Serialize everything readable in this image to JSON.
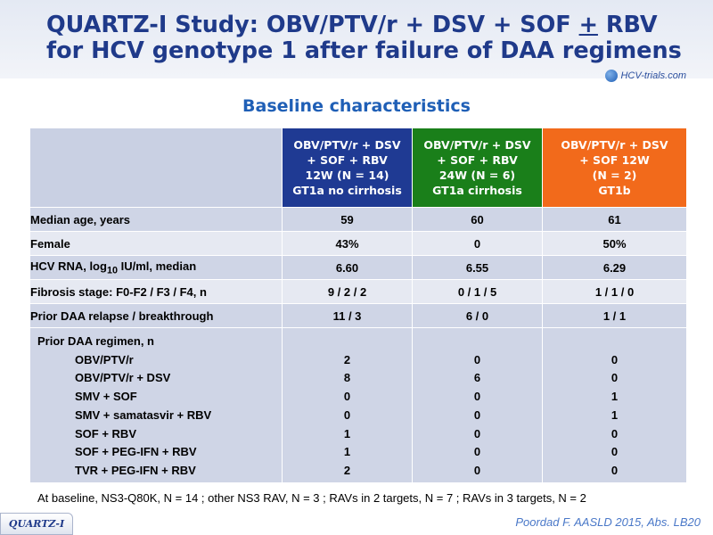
{
  "title": {
    "line1_a": "QUARTZ-I Study: OBV/PTV/r + DSV + SOF ",
    "line1_plusminus": "+",
    "line1_b": " RBV",
    "line2": "for HCV genotype 1 after failure of DAA regimens"
  },
  "logo": {
    "text": "HCV-trials.com"
  },
  "subtitle": "Baseline characteristics",
  "columns": [
    {
      "lines": [
        "OBV/PTV/r + DSV",
        "+ SOF + RBV",
        "12W (N = 14)",
        "GT1a no cirrhosis"
      ],
      "color": "#1f3a93"
    },
    {
      "lines": [
        "OBV/PTV/r + DSV",
        "+ SOF + RBV",
        "24W (N = 6)",
        "GT1a cirrhosis"
      ],
      "color": "#1a7f1a"
    },
    {
      "lines": [
        "OBV/PTV/r + DSV",
        "+ SOF 12W",
        "(N = 2)",
        "GT1b"
      ],
      "color": "#f26a1b"
    }
  ],
  "rows": [
    {
      "label": "Median age, years",
      "values": [
        "59",
        "60",
        "61"
      ]
    },
    {
      "label": "Female",
      "values": [
        "43%",
        "0",
        "50%"
      ]
    },
    {
      "label_pre": "HCV RNA, log",
      "label_sub": "10",
      "label_post": " IU/ml, median",
      "values": [
        "6.60",
        "6.55",
        "6.29"
      ]
    },
    {
      "label": "Fibrosis stage: F0-F2 / F3 / F4, n",
      "values": [
        "9 / 2 / 2",
        "0 / 1 / 5",
        "1 / 1 / 0"
      ]
    },
    {
      "label": "Prior DAA relapse / breakthrough",
      "values": [
        "11 / 3",
        "6 / 0",
        "1 / 1"
      ]
    }
  ],
  "regimen": {
    "heading": "Prior DAA regimen, n",
    "items": [
      {
        "label": "OBV/PTV/r",
        "values": [
          "2",
          "0",
          "0"
        ]
      },
      {
        "label": "OBV/PTV/r + DSV",
        "values": [
          "8",
          "6",
          "0"
        ]
      },
      {
        "label": "SMV + SOF",
        "values": [
          "0",
          "0",
          "1"
        ]
      },
      {
        "label": "SMV + samatasvir + RBV",
        "values": [
          "0",
          "0",
          "1"
        ]
      },
      {
        "label": "SOF + RBV",
        "values": [
          "1",
          "0",
          "0"
        ]
      },
      {
        "label": "SOF + PEG-IFN + RBV",
        "values": [
          "1",
          "0",
          "0"
        ]
      },
      {
        "label": "TVR + PEG-IFN + RBV",
        "values": [
          "2",
          "0",
          "0"
        ]
      }
    ]
  },
  "footnote": "At baseline, NS3-Q80K, N = 14 ;  other NS3 RAV, N = 3 ;  RAVs in 2 targets, N = 7 ; RAVs in 3 targets, N = 2",
  "badge": "QUARTZ-I",
  "citation": "Poordad F. AASLD 2015, Abs. LB20"
}
